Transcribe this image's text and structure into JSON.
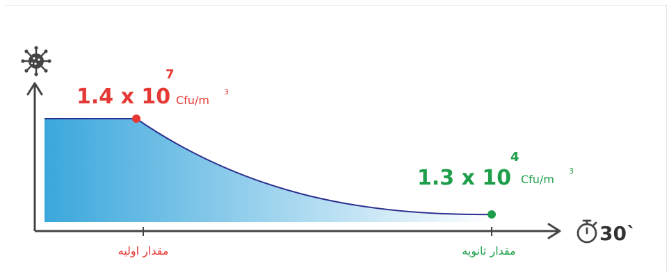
{
  "chart_data": {
    "type": "area",
    "title": "",
    "xlabel": "",
    "ylabel": "",
    "x_time_label": "30`",
    "points": [
      {
        "label": "مقدار اولیه",
        "value_text": "1.4 x 10",
        "exponent": "7",
        "unit": "Cfu/m",
        "unit_exponent": "3",
        "value": 14000000,
        "color": "#e53935"
      },
      {
        "label": "مقدار ثانویه",
        "value_text": "1.3 x 10",
        "exponent": "4",
        "unit": "Cfu/m",
        "unit_exponent": "3",
        "value": 13000,
        "color": "#1e9e4a"
      }
    ],
    "curve_color": "#2b2f8f",
    "fill_gradient": [
      "#3aa7dc",
      "#ffffff"
    ],
    "axis_color": "#444444",
    "icons": [
      "virus-icon",
      "stopwatch-icon"
    ]
  }
}
